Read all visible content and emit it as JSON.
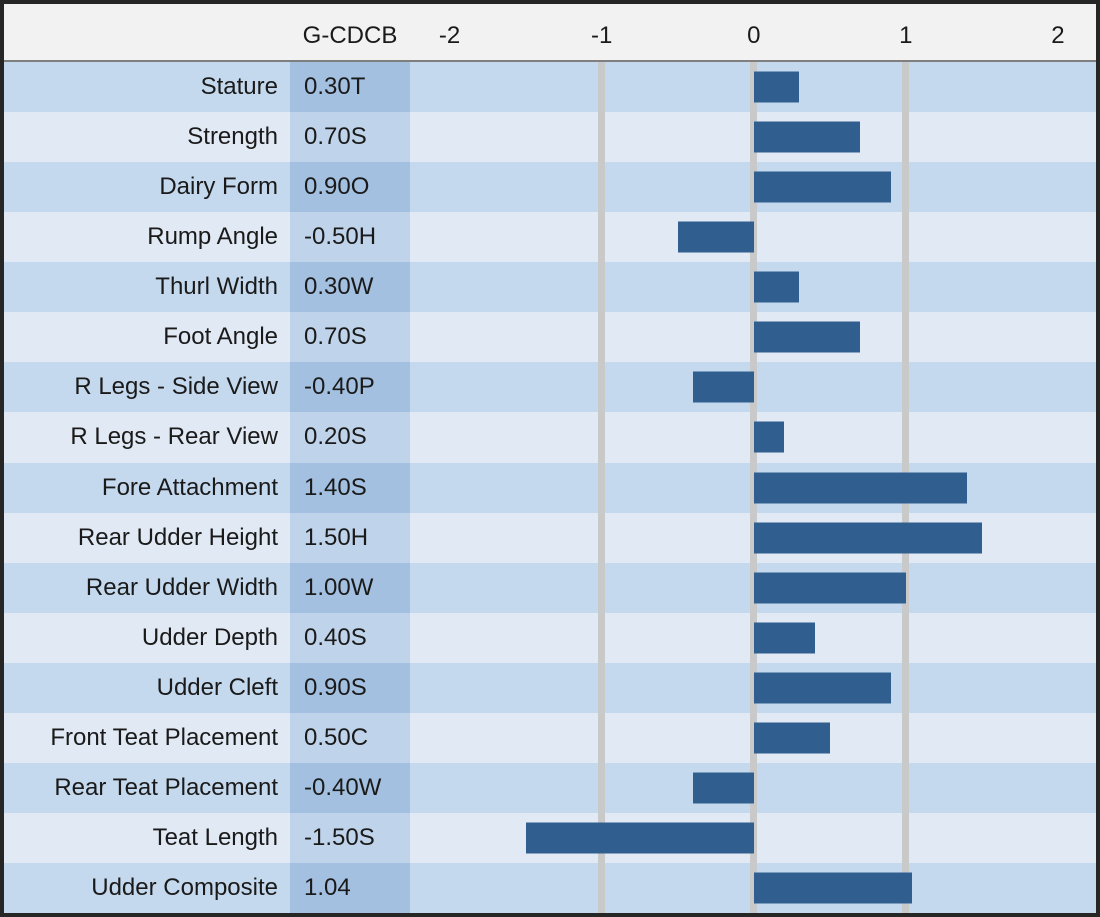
{
  "chart_data": {
    "type": "bar",
    "orientation": "horizontal",
    "title": "",
    "value_column_header": "G-CDCB",
    "x_ticks": [
      -2,
      -1,
      0,
      1,
      2
    ],
    "x_tick_labels": [
      "-2",
      "-1",
      "0",
      "1",
      "2"
    ],
    "xlim": [
      -2.26,
      2.25
    ],
    "gridlines_at": [
      -1,
      0,
      1
    ],
    "grid": true,
    "legend": false,
    "rows": [
      {
        "trait": "Stature",
        "label": "0.30T",
        "value": 0.3
      },
      {
        "trait": "Strength",
        "label": "0.70S",
        "value": 0.7
      },
      {
        "trait": "Dairy Form",
        "label": "0.90O",
        "value": 0.9
      },
      {
        "trait": "Rump Angle",
        "label": "-0.50H",
        "value": -0.5
      },
      {
        "trait": "Thurl Width",
        "label": "0.30W",
        "value": 0.3
      },
      {
        "trait": "Foot Angle",
        "label": "0.70S",
        "value": 0.7
      },
      {
        "trait": "R Legs - Side View",
        "label": "-0.40P",
        "value": -0.4
      },
      {
        "trait": "R Legs - Rear View",
        "label": "0.20S",
        "value": 0.2
      },
      {
        "trait": "Fore Attachment",
        "label": "1.40S",
        "value": 1.4
      },
      {
        "trait": "Rear Udder Height",
        "label": "1.50H",
        "value": 1.5
      },
      {
        "trait": "Rear Udder Width",
        "label": "1.00W",
        "value": 1.0
      },
      {
        "trait": "Udder Depth",
        "label": "0.40S",
        "value": 0.4
      },
      {
        "trait": "Udder Cleft",
        "label": "0.90S",
        "value": 0.9
      },
      {
        "trait": "Front Teat Placement",
        "label": "0.50C",
        "value": 0.5
      },
      {
        "trait": "Rear Teat Placement",
        "label": "-0.40W",
        "value": -0.4
      },
      {
        "trait": "Teat Length",
        "label": "-1.50S",
        "value": -1.5
      },
      {
        "trait": "Udder Composite",
        "label": "1.04",
        "value": 1.04
      }
    ],
    "colors": {
      "bar": "#2F5E8F",
      "row_dark": "#C5D9EE",
      "row_light": "#E1E9F4",
      "value_cell_dark": "#A3C0E0",
      "value_cell_light": "#BFD3EA",
      "header_bg": "#F2F2F2",
      "gridline": "#C9C9C9",
      "border": "#262626",
      "text": "#1A1A1A",
      "header_separator": "#7F7F7F"
    }
  }
}
